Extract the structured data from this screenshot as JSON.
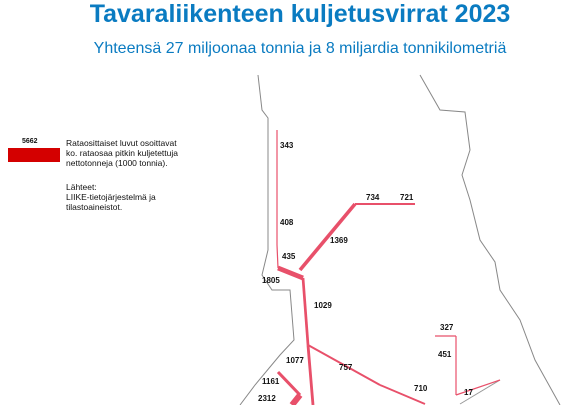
{
  "header": {
    "title": "Tavaraliikenteen kuljetusvirrat 2023",
    "subtitle": "Yhteensä 27 miljoonaa tonnia ja 8 miljardia tonnikilometriä"
  },
  "legend": {
    "sample": "5662",
    "text": [
      "Rataosittaiset luvut osoittavat",
      "ko. rataosaa pitkin kuljetettuja",
      "nettotonneja (1000 tonnia)."
    ],
    "sources": [
      "Lähteet:",
      "LIIKE-tietojärjestelmä ja",
      "tilastoaineistot."
    ]
  },
  "segments": [
    343,
    408,
    435,
    1805,
    1369,
    734,
    721,
    1029,
    327,
    451,
    1077,
    757,
    1161,
    710,
    17,
    2312
  ]
}
